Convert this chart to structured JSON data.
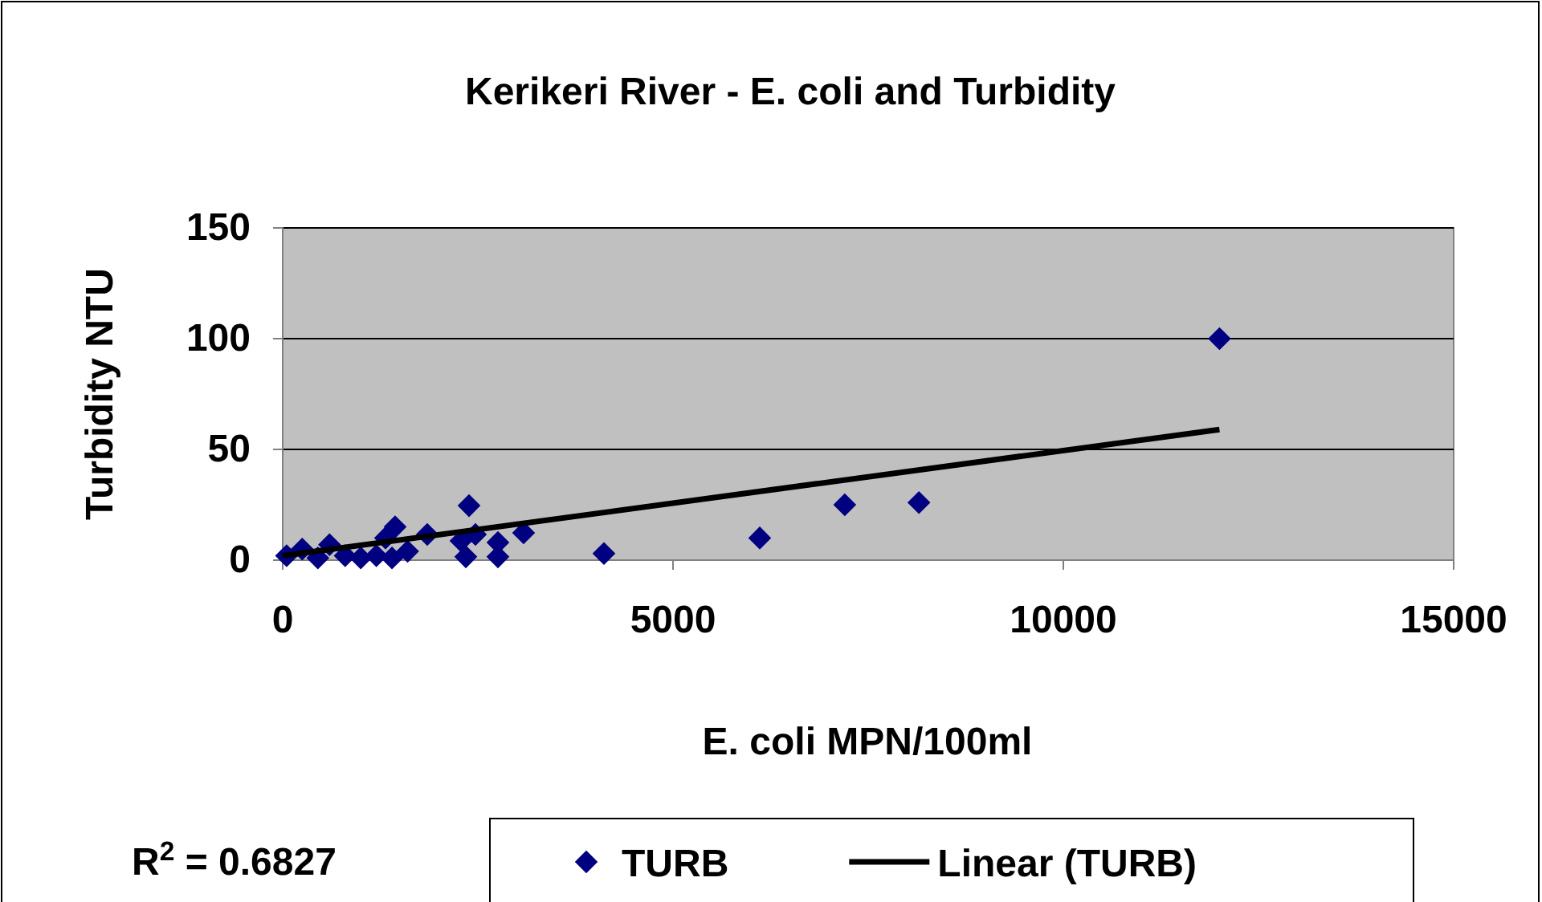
{
  "chart_data": {
    "type": "scatter",
    "title": "Kerikeri River - E. coli and Turbidity",
    "xlabel": "E. coli MPN/100ml",
    "ylabel": "Turbidity NTU",
    "xlim": [
      0,
      15000
    ],
    "xticks": [
      0,
      5000,
      10000,
      15000
    ],
    "ylim": [
      0,
      150
    ],
    "yticks": [
      0,
      50,
      100,
      150
    ],
    "grid": "y",
    "legend": "bottom",
    "marker": "diamond",
    "annotations": [
      "R$^{2}$ = 0.6827"
    ],
    "series": [
      {
        "name": "TURB",
        "color": "#000080",
        "x": [
          50,
          250,
          450,
          600,
          800,
          1000,
          1200,
          1317,
          1400,
          1440,
          1600,
          1852,
          2284,
          2346,
          2387,
          2469,
          2757,
          2757,
          3086,
          4115,
          6111,
          7200,
          8150,
          12000
        ],
        "values": [
          2,
          5,
          1,
          7,
          2,
          1,
          2,
          10,
          1,
          15,
          4,
          11.6,
          8.7,
          1.5,
          24.6,
          11.6,
          8,
          1.5,
          12.3,
          3,
          10,
          25,
          26,
          100
        ]
      },
      {
        "name": "Linear (TURB)",
        "type": "line",
        "color": "#000000",
        "marker": "none",
        "x": [
          0,
          12000
        ],
        "values": [
          2,
          59
        ]
      }
    ]
  }
}
